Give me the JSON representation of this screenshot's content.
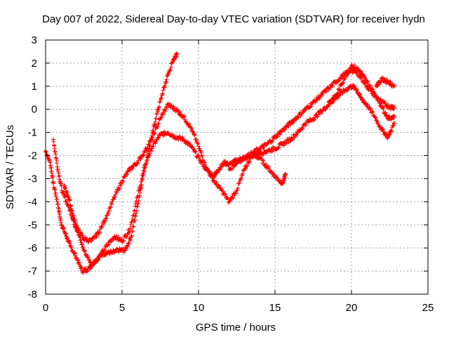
{
  "chart_data": {
    "type": "scatter",
    "title": "Day 007 of 2022, Sidereal Day-to-day VTEC variation (SDTVAR) for receiver hydn",
    "xlabel": "GPS time / hours",
    "ylabel": "SDTVAR / TECUs",
    "xlim": [
      0,
      25
    ],
    "ylim": [
      -8,
      3
    ],
    "x_ticks": [
      0,
      5,
      10,
      15,
      20,
      25
    ],
    "y_ticks": [
      -8,
      -7,
      -6,
      -5,
      -4,
      -3,
      -2,
      -1,
      0,
      1,
      2,
      3
    ],
    "x_tick_labels": [
      "0",
      "5",
      "10",
      "15",
      "20",
      "25"
    ],
    "y_tick_labels": [
      "-8",
      "-7",
      "-6",
      "-5",
      "-4",
      "-3",
      "-2",
      "-1",
      "0",
      "1",
      "2",
      "3"
    ],
    "grid": true,
    "marker": "+",
    "color": "#ff0000",
    "series": [
      {
        "x": [
          0.0,
          0.3,
          0.5,
          0.8,
          1.0,
          1.3,
          1.6,
          2.0,
          2.4,
          2.8,
          3.2,
          3.6,
          4.0,
          4.4,
          4.8,
          5.2,
          5.6,
          6.0,
          6.4,
          6.8,
          7.2,
          7.6,
          8.0,
          8.4,
          8.6
        ],
        "y": [
          -1.8,
          -2.3,
          -3.2,
          -4.1,
          -4.9,
          -5.4,
          -5.9,
          -6.4,
          -7.0,
          -6.9,
          -6.6,
          -6.3,
          -6.2,
          -6.2,
          -6.1,
          -6.1,
          -5.5,
          -4.2,
          -2.8,
          -1.6,
          -0.4,
          0.6,
          1.5,
          2.2,
          2.4
        ]
      },
      {
        "x": [
          0.5,
          0.8,
          1.1,
          1.5,
          1.8,
          2.1,
          2.5,
          3.0,
          3.5,
          4.0,
          4.5,
          5.0,
          5.5,
          6.0,
          6.5,
          7.0,
          7.5,
          8.0,
          8.5,
          9.0,
          9.5,
          10.0,
          10.5,
          11.0,
          11.3,
          11.7,
          12.0,
          12.5,
          13.0,
          13.5,
          14.0,
          14.5,
          15.0,
          15.5,
          15.7
        ],
        "y": [
          -1.3,
          -2.6,
          -3.6,
          -4.2,
          -4.8,
          -5.3,
          -6.1,
          -6.7,
          -6.4,
          -5.9,
          -5.5,
          -5.7,
          -5.2,
          -3.8,
          -2.4,
          -1.6,
          -1.1,
          -1.0,
          -1.2,
          -1.3,
          -1.6,
          -2.1,
          -2.6,
          -2.9,
          -2.6,
          -2.3,
          -2.4,
          -2.2,
          -2.1,
          -2.0,
          -2.1,
          -2.5,
          -2.9,
          -3.2,
          -2.8
        ]
      },
      {
        "x": [
          1.2,
          1.5,
          1.8,
          2.1,
          2.5,
          3.0,
          3.5,
          4.0,
          4.5,
          5.0,
          5.5,
          6.0,
          6.5,
          7.0,
          7.5,
          8.0,
          8.5,
          9.0,
          9.5,
          10.0,
          10.5,
          11.0,
          11.5,
          12.0,
          12.5,
          13.0,
          13.5,
          14.0,
          14.5,
          15.0,
          15.5,
          16.0,
          16.5,
          17.0,
          17.5,
          18.0,
          18.5,
          19.0,
          19.5,
          20.0,
          20.3,
          20.6,
          21.0,
          21.5,
          22.0,
          22.4,
          22.8
        ],
        "y": [
          -3.3,
          -3.8,
          -4.6,
          -5.2,
          -5.6,
          -5.7,
          -5.3,
          -4.6,
          -3.8,
          -3.1,
          -2.6,
          -2.3,
          -1.8,
          -1.2,
          -0.4,
          0.2,
          0.0,
          -0.3,
          -0.8,
          -1.6,
          -2.5,
          -3.1,
          -3.5,
          -4.0,
          -3.5,
          -2.6,
          -2.0,
          -1.9,
          -1.8,
          -1.7,
          -1.5,
          -1.3,
          -1.0,
          -0.6,
          -0.4,
          -0.1,
          0.2,
          0.5,
          0.8,
          1.0,
          0.9,
          0.5,
          0.2,
          -0.3,
          -0.9,
          -1.2,
          -0.6
        ]
      },
      {
        "x": [
          12.0,
          12.5,
          13.0,
          13.5,
          14.0,
          14.5,
          15.0,
          15.5,
          16.0,
          16.5,
          17.0,
          17.5,
          18.0,
          18.5,
          19.0,
          19.5,
          20.0,
          20.5,
          21.0,
          21.5,
          22.0,
          22.5,
          22.8
        ],
        "y": [
          -2.6,
          -2.3,
          -2.1,
          -1.9,
          -1.7,
          -1.5,
          -1.2,
          -0.9,
          -0.6,
          -0.3,
          0.0,
          0.3,
          0.6,
          0.9,
          1.2,
          1.5,
          1.7,
          1.5,
          1.0,
          0.6,
          0.3,
          0.1,
          0.1
        ]
      },
      {
        "x": [
          18.5,
          19.0,
          19.5,
          20.0,
          20.5,
          21.0,
          21.5,
          22.0,
          22.4,
          22.8
        ],
        "y": [
          0.3,
          0.6,
          1.3,
          1.9,
          1.7,
          1.2,
          0.7,
          0.1,
          -0.4,
          -0.3
        ]
      },
      {
        "x": [
          21.6,
          22.0,
          22.4,
          22.8
        ],
        "y": [
          1.0,
          1.3,
          1.2,
          1.0
        ]
      }
    ]
  }
}
